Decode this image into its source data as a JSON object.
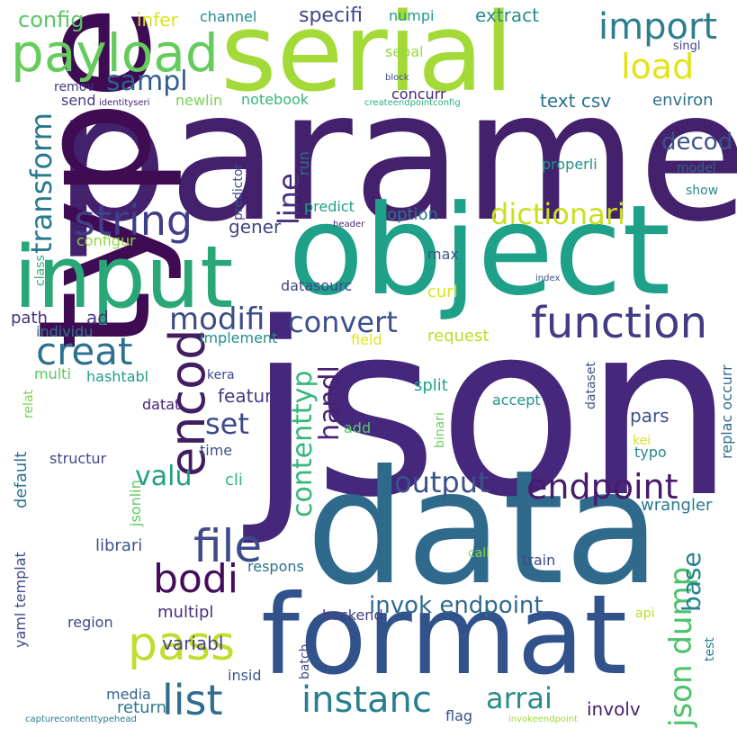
{
  "background": "#ffffff",
  "words": [
    {
      "text": "json",
      "color": "#45277b"
    },
    {
      "text": "paramet",
      "color": "#44216c"
    },
    {
      "text": "data",
      "color": "#2f6a8d"
    },
    {
      "text": "type",
      "color": "#3f0b52"
    },
    {
      "text": "object",
      "color": "#1fa088"
    },
    {
      "text": "format",
      "color": "#32528b"
    },
    {
      "text": "serial",
      "color": "#a3da37"
    },
    {
      "text": "input",
      "color": "#29a777"
    },
    {
      "text": "payload",
      "color": "#66cb5d"
    },
    {
      "text": "function",
      "color": "#433b84"
    },
    {
      "text": "string",
      "color": "#403e89"
    },
    {
      "text": "encod",
      "color": "#411d62"
    },
    {
      "text": "pass",
      "color": "#c0de2d"
    },
    {
      "text": "file",
      "color": "#3e4b8a"
    },
    {
      "text": "import",
      "color": "#2d7f8e"
    },
    {
      "text": "load",
      "color": "#e2e419"
    },
    {
      "text": "list",
      "color": "#2f6c8e"
    },
    {
      "text": "instanc",
      "color": "#287f8e"
    },
    {
      "text": "endpoint",
      "color": "#471b6b"
    },
    {
      "text": "bodi",
      "color": "#440d5c"
    },
    {
      "text": "creat",
      "color": "#2c728e"
    },
    {
      "text": "dictionari",
      "color": "#c8e020"
    },
    {
      "text": "modifi",
      "color": "#3d4c89"
    },
    {
      "text": "convert",
      "color": "#3b518b"
    },
    {
      "text": "output",
      "color": "#3b518b"
    },
    {
      "text": "arrai",
      "color": "#2a8d8a"
    },
    {
      "text": "json dump",
      "color": "#4cc26c"
    },
    {
      "text": "sampl",
      "color": "#2f5d8d"
    },
    {
      "text": "transform",
      "color": "#29798e"
    },
    {
      "text": "line",
      "color": "#472e7c"
    },
    {
      "text": "contenttyp",
      "color": "#35b779"
    },
    {
      "text": "handl",
      "color": "#482173"
    },
    {
      "text": "valu",
      "color": "#23a083"
    },
    {
      "text": "set",
      "color": "#3e4a89"
    },
    {
      "text": "base",
      "color": "#26818e"
    },
    {
      "text": "invok endpoint",
      "color": "#2e6a8e"
    },
    {
      "text": "decod",
      "color": "#3b528b"
    },
    {
      "text": "config",
      "color": "#58c765"
    },
    {
      "text": "specifi",
      "color": "#404688"
    },
    {
      "text": "extract",
      "color": "#2a8a8d"
    },
    {
      "text": "channel",
      "color": "#23898e"
    },
    {
      "text": "infer",
      "color": "#dde318"
    },
    {
      "text": "numpi",
      "color": "#1f9a8a"
    },
    {
      "text": "sepal",
      "color": "#94d741"
    },
    {
      "text": "singl",
      "color": "#3e4989"
    },
    {
      "text": "remov",
      "color": "#3d3b85"
    },
    {
      "text": "send",
      "color": "#443983"
    },
    {
      "text": "identityseri",
      "color": "#482374"
    },
    {
      "text": "newlin",
      "color": "#7ad151"
    },
    {
      "text": "notebook",
      "color": "#35b779"
    },
    {
      "text": "block",
      "color": "#3c4f8a"
    },
    {
      "text": "concurr",
      "color": "#482677"
    },
    {
      "text": "createendpointconfig",
      "color": "#29af7f"
    },
    {
      "text": "text csv",
      "color": "#2c728e"
    },
    {
      "text": "environ",
      "color": "#2d708e"
    },
    {
      "text": "properli",
      "color": "#21918c"
    },
    {
      "text": "model",
      "color": "#33638d"
    },
    {
      "text": "show",
      "color": "#238a8d"
    },
    {
      "text": "predictor",
      "color": "#3f4889"
    },
    {
      "text": "run",
      "color": "#2d708e"
    },
    {
      "text": "predict",
      "color": "#20a386"
    },
    {
      "text": "header",
      "color": "#482475"
    },
    {
      "text": "option",
      "color": "#2c728e"
    },
    {
      "text": "gener",
      "color": "#414487"
    },
    {
      "text": "configur",
      "color": "#8fd744"
    },
    {
      "text": "max",
      "color": "#375b8d"
    },
    {
      "text": "index",
      "color": "#3b528b"
    },
    {
      "text": "class",
      "color": "#2db27d"
    },
    {
      "text": "ad",
      "color": "#46327e"
    },
    {
      "text": "path",
      "color": "#462f7e"
    },
    {
      "text": "datasourc",
      "color": "#3f4788"
    },
    {
      "text": "curl",
      "color": "#e2e419"
    },
    {
      "text": "individu",
      "color": "#2a788e"
    },
    {
      "text": "implement",
      "color": "#218f8d"
    },
    {
      "text": "field",
      "color": "#e5e419"
    },
    {
      "text": "request",
      "color": "#bade28"
    },
    {
      "text": "multi",
      "color": "#5ec962"
    },
    {
      "text": "hashtabl",
      "color": "#1f9e89"
    },
    {
      "text": "kera",
      "color": "#3e4989"
    },
    {
      "text": "featur",
      "color": "#443a83"
    },
    {
      "text": "split",
      "color": "#20a486"
    },
    {
      "text": "accept",
      "color": "#21918c"
    },
    {
      "text": "dataset",
      "color": "#3b528b"
    },
    {
      "text": "pars",
      "color": "#3b528b"
    },
    {
      "text": "replac occurr",
      "color": "#306a8e"
    },
    {
      "text": "relat",
      "color": "#7ad151"
    },
    {
      "text": "datat",
      "color": "#482173"
    },
    {
      "text": "add",
      "color": "#58c765"
    },
    {
      "text": "binari",
      "color": "#6ccd5a"
    },
    {
      "text": "default",
      "color": "#2c728e"
    },
    {
      "text": "time",
      "color": "#3b528b"
    },
    {
      "text": "kei",
      "color": "#d8e219"
    },
    {
      "text": "typo",
      "color": "#23888e"
    },
    {
      "text": "structur",
      "color": "#3e4a89"
    },
    {
      "text": "jsonlin",
      "color": "#5ec962"
    },
    {
      "text": "cli",
      "color": "#35b779"
    },
    {
      "text": "wrangler",
      "color": "#29798e"
    },
    {
      "text": "yaml templat",
      "color": "#3e4c8a"
    },
    {
      "text": "librari",
      "color": "#3b528b"
    },
    {
      "text": "respons",
      "color": "#2c718e"
    },
    {
      "text": "call",
      "color": "#8bd646"
    },
    {
      "text": "train",
      "color": "#3e4a89"
    },
    {
      "text": "test",
      "color": "#277f8e"
    },
    {
      "text": "region",
      "color": "#3f4788"
    },
    {
      "text": "multipl",
      "color": "#472f7d"
    },
    {
      "text": "backend",
      "color": "#424186"
    },
    {
      "text": "api",
      "color": "#b5de2b"
    },
    {
      "text": "variabl",
      "color": "#414487"
    },
    {
      "text": "insid",
      "color": "#39568c"
    },
    {
      "text": "batch",
      "color": "#3e4989"
    },
    {
      "text": "media",
      "color": "#33638d"
    },
    {
      "text": "return",
      "color": "#2a788e"
    },
    {
      "text": "involv",
      "color": "#481f70"
    },
    {
      "text": "flag",
      "color": "#3b528b"
    },
    {
      "text": "capturecontenttypehead",
      "color": "#2a788e"
    },
    {
      "text": "invokeendpoint",
      "color": "#a0da39"
    }
  ]
}
